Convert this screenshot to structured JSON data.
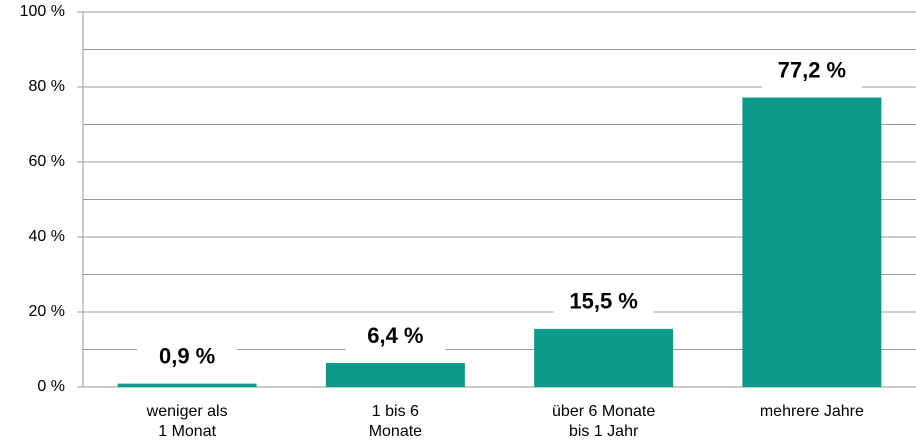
{
  "chart_data": {
    "type": "bar",
    "categories": [
      "weniger als\n1 Monat",
      "1 bis 6\nMonate",
      "über 6 Monate\nbis 1 Jahr",
      "mehrere Jahre"
    ],
    "values": [
      0.9,
      6.4,
      15.5,
      77.2
    ],
    "value_labels": [
      "0,9 %",
      "6,4 %",
      "15,5 %",
      "77,2 %"
    ],
    "color": "#0b9a8a",
    "ylim": [
      0,
      100
    ],
    "yticks": [
      {
        "value": 0,
        "label": "0 %"
      },
      {
        "value": 20,
        "label": "20 %"
      },
      {
        "value": 40,
        "label": "40 %"
      },
      {
        "value": 60,
        "label": "60 %"
      },
      {
        "value": 80,
        "label": "80 %"
      },
      {
        "value": 100,
        "label": "100 %"
      }
    ],
    "minor_gridlines": [
      10,
      30,
      50,
      70,
      90
    ],
    "grid": true
  }
}
